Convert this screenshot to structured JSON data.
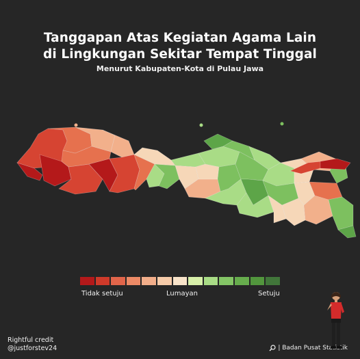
{
  "title_line1": "Tanggapan Atas Kegiatan Agama Lain",
  "title_line2": "di Lingkungan Sekitar Tempat Tinggal",
  "subtitle": "Menurut Kabupaten-Kota di Pulau Jawa",
  "legend": {
    "colors": [
      "#b4191a",
      "#cf3a2a",
      "#e1654a",
      "#ec8a66",
      "#f2ae8a",
      "#f6cba9",
      "#f8e3c9",
      "#d7efa9",
      "#a9dc86",
      "#84c566",
      "#67ad4d",
      "#52963d",
      "#41763a"
    ],
    "label_low": "Tidak setuju",
    "label_mid": "Lumayan",
    "label_high": "Setuju"
  },
  "credit_line1": "Rightful credit",
  "credit_line2": "@justforstev24",
  "source": "| Badan Pusat Statistik",
  "source_icon": "search-icon",
  "map_colors": {
    "west": "#d64432",
    "west_dark": "#b4191a",
    "orange": "#e6714e",
    "peach": "#f2b08b",
    "cream": "#f6d7b8",
    "light_green": "#a9dc86",
    "mid_green": "#7dc05f",
    "dark_green": "#5da548"
  }
}
